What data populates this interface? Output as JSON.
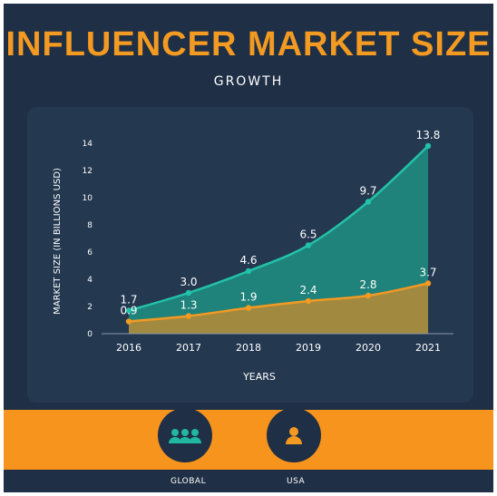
{
  "title": "INFLUENCER MARKET SIZE",
  "subtitle": "GROWTH",
  "footer": {
    "items": [
      {
        "label": "GLOBAL",
        "icon": "group-icon"
      },
      {
        "label": "USA",
        "icon": "person-icon"
      }
    ]
  },
  "colors": {
    "background": "#1f2f45",
    "panel": "#243850",
    "accent": "#f7941d",
    "global_line": "#22b7a0",
    "usa_line": "#f39a22"
  },
  "chart_data": {
    "type": "area",
    "categories": [
      "2016",
      "2017",
      "2018",
      "2019",
      "2020",
      "2021"
    ],
    "series": [
      {
        "name": "GLOBAL",
        "values": [
          1.7,
          3.0,
          4.6,
          6.5,
          9.7,
          13.8
        ],
        "labels": [
          "1.7",
          "3.0",
          "4.6",
          "6.5",
          "9.7",
          "13.8"
        ]
      },
      {
        "name": "USA",
        "values": [
          0.9,
          1.3,
          1.9,
          2.4,
          2.8,
          3.7
        ],
        "labels": [
          "0.9",
          "1.3",
          "1.9",
          "2.4",
          "2.8",
          "3.7"
        ]
      }
    ],
    "xlabel": "YEARS",
    "ylabel": "MARKET SIZE (IN BILLIONS USD)",
    "ylim": [
      0,
      14
    ],
    "yticks": [
      "0",
      "2",
      "4",
      "6",
      "8",
      "10",
      "12",
      "14"
    ],
    "grid": false,
    "legend": "bottom"
  }
}
